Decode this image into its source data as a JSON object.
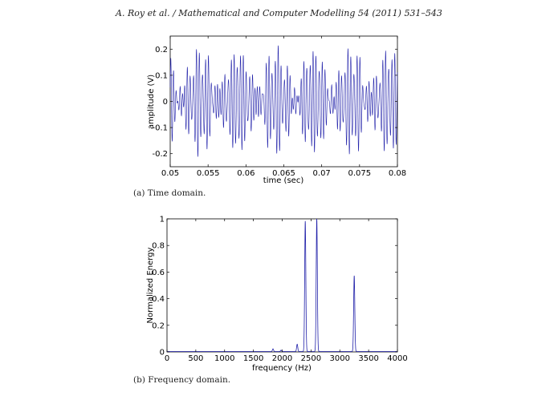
{
  "header": "A. Roy et al. / Mathematical and Computer Modelling 54 (2011) 531–543",
  "chart_data": [
    {
      "type": "line",
      "caption": "(a) Time domain.",
      "xlabel": "time (sec)",
      "ylabel": "amplitude (V)",
      "xlim": [
        0.05,
        0.08
      ],
      "ylim": [
        -0.25,
        0.25
      ],
      "xticks": [
        "0.05",
        "0.055",
        "0.06",
        "0.065",
        "0.07",
        "0.075",
        "0.08"
      ],
      "xtick_values": [
        0.05,
        0.055,
        0.06,
        0.065,
        0.07,
        0.075,
        0.08
      ],
      "yticks": [
        "0.2",
        "0.1",
        "0",
        "-0.1",
        "-0.2"
      ],
      "ytick_values": [
        0.2,
        0.1,
        0,
        -0.1,
        -0.2
      ],
      "grid": false,
      "color": "#2222aa",
      "components_hz": [
        2400,
        2600,
        3250
      ],
      "component_weights": [
        0.08,
        0.08,
        0.045
      ]
    },
    {
      "type": "line",
      "caption": "(b) Frequency domain.",
      "xlabel": "frequency (Hz)",
      "ylabel": "Normalized Energy",
      "xlim": [
        0,
        4000
      ],
      "ylim": [
        0,
        1
      ],
      "xticks": [
        "0",
        "500",
        "1000",
        "1500",
        "2000",
        "2500",
        "3000",
        "3500",
        "4000"
      ],
      "xtick_values": [
        0,
        500,
        1000,
        1500,
        2000,
        2500,
        3000,
        3500,
        4000
      ],
      "yticks": [
        "1",
        "0.8",
        "0.6",
        "0.4",
        "0.2",
        "0"
      ],
      "ytick_values": [
        1,
        0.8,
        0.6,
        0.4,
        0.2,
        0
      ],
      "grid": false,
      "color": "#2222aa",
      "peaks": [
        {
          "x": 1840,
          "y": 0.02
        },
        {
          "x": 1980,
          "y": 0.01
        },
        {
          "x": 2260,
          "y": 0.055
        },
        {
          "x": 2400,
          "y": 0.98
        },
        {
          "x": 2600,
          "y": 1.0
        },
        {
          "x": 3250,
          "y": 0.57
        }
      ]
    }
  ]
}
